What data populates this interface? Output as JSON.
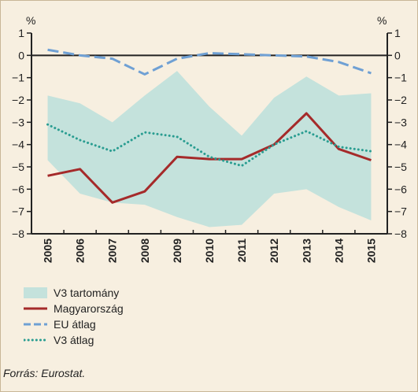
{
  "chart_data": {
    "type": "line",
    "units_left": "%",
    "units_right": "%",
    "categories": [
      "2005",
      "2006",
      "2007",
      "2008",
      "2009",
      "2010",
      "2011",
      "2012",
      "2013",
      "2014",
      "2015"
    ],
    "ylim": [
      -8,
      1
    ],
    "yticks": [
      1,
      0,
      -1,
      -2,
      -3,
      -4,
      -5,
      -6,
      -7,
      -8
    ],
    "band": {
      "name": "V3 tartomány",
      "upper": [
        -1.8,
        -2.15,
        -3.0,
        -1.8,
        -0.7,
        -2.3,
        -3.6,
        -1.9,
        -0.95,
        -1.8,
        -1.7
      ],
      "lower": [
        -4.7,
        -6.2,
        -6.6,
        -6.7,
        -7.25,
        -7.7,
        -7.6,
        -6.2,
        -6.0,
        -6.8,
        -7.4
      ],
      "color": "#c4e2dc"
    },
    "series": [
      {
        "name": "Magyarország",
        "style": "solid",
        "color": "#a52a2a",
        "values": [
          -5.4,
          -5.1,
          -6.6,
          -6.1,
          -4.55,
          -4.65,
          -4.65,
          -4.0,
          -2.6,
          -4.2,
          -4.7
        ]
      },
      {
        "name": "EU átlag",
        "style": "dashed",
        "color": "#6fa0d4",
        "values": [
          0.25,
          0.0,
          -0.15,
          -0.85,
          -0.15,
          0.1,
          0.05,
          0.0,
          -0.05,
          -0.3,
          -0.8
        ]
      },
      {
        "name": "V3 átlag",
        "style": "dotted",
        "color": "#2a9d91",
        "values": [
          -3.1,
          -3.8,
          -4.3,
          -3.45,
          -3.65,
          -4.55,
          -4.95,
          -4.0,
          -3.4,
          -4.1,
          -4.3
        ]
      }
    ],
    "legend_position": "bottom-left",
    "grid": false
  },
  "legend": [
    {
      "label": "V3 tartomány"
    },
    {
      "label": "Magyarország"
    },
    {
      "label": "EU átlag"
    },
    {
      "label": "V3 átlag"
    }
  ],
  "source": "Forrás: Eurostat."
}
